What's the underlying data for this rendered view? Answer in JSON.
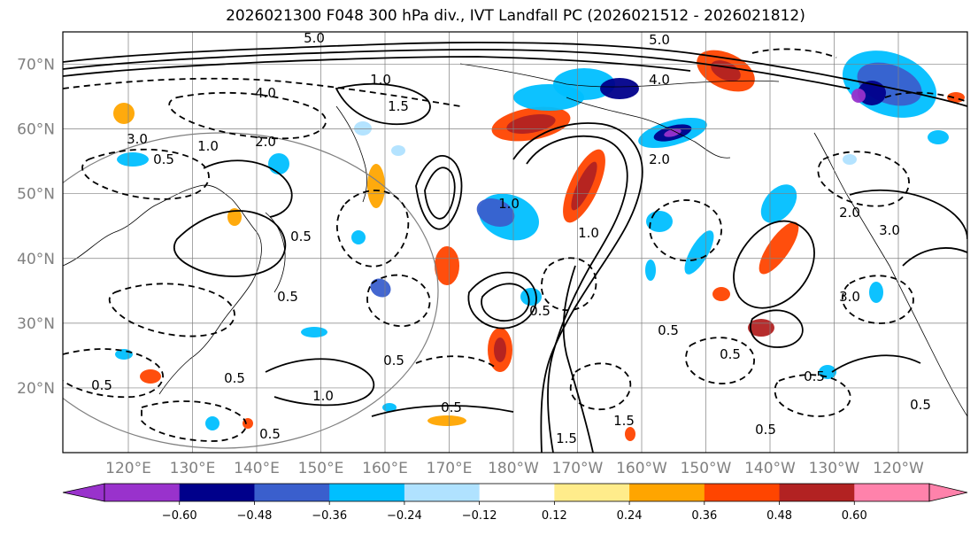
{
  "title": "2026021300 F048 300 hPa div., IVT Landfall PC (2026021512 - 2026021812)",
  "map": {
    "lat_ticks": [
      {
        "value": 70,
        "label": "70°N"
      },
      {
        "value": 60,
        "label": "60°N"
      },
      {
        "value": 50,
        "label": "50°N"
      },
      {
        "value": 40,
        "label": "40°N"
      },
      {
        "value": 30,
        "label": "30°N"
      },
      {
        "value": 20,
        "label": "20°N"
      }
    ],
    "lon_ticks": [
      "120°E",
      "130°E",
      "140°E",
      "150°E",
      "160°E",
      "170°E",
      "180°W",
      "170°W",
      "160°W",
      "150°W",
      "140°W",
      "130°W",
      "120°W"
    ],
    "lat_range": [
      10,
      75
    ],
    "contour_labels": [
      "5.0",
      "5.0",
      "4.0",
      "4.0",
      "3.0",
      "3.0",
      "3.0",
      "2.0",
      "2.0",
      "2.0",
      "1.5",
      "1.5",
      "1.5",
      "1.0",
      "1.0",
      "1.0",
      "1.0",
      "1.0",
      "0.5",
      "0.5",
      "0.5",
      "0.5",
      "0.5",
      "0.5",
      "0.5",
      "0.5",
      "0.5",
      "0.5",
      "0.5",
      "0.5",
      "0.5",
      "0.5"
    ]
  },
  "colorbar": {
    "ticks": [
      "−0.60",
      "−0.48",
      "−0.36",
      "−0.24",
      "−0.12",
      "0.12",
      "0.24",
      "0.36",
      "0.48",
      "0.60"
    ],
    "colors": [
      "#9932cc",
      "#00008b",
      "#3a5fcd",
      "#00bfff",
      "#b0e2ff",
      "#ffffff",
      "#ffec8b",
      "#ffa500",
      "#ff4500",
      "#b22222",
      "#ff82ab"
    ],
    "extend": "both"
  },
  "colors": {
    "frame": "#000000",
    "grid": "#808080",
    "positive_contour": "#000000",
    "negative_contour": "#000000"
  }
}
